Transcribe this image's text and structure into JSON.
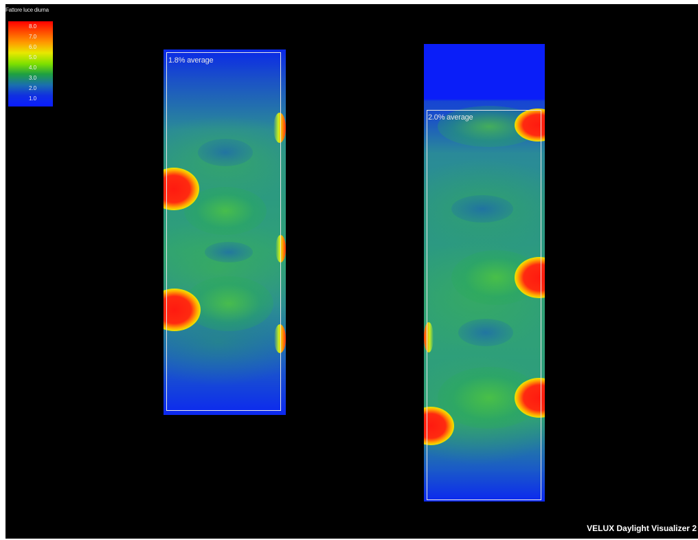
{
  "legend": {
    "title": "Fattore luce diurna",
    "ticks": [
      "8.0",
      "7.0",
      "6.0",
      "5.0",
      "4.0",
      "3.0",
      "2.0",
      "1.0"
    ]
  },
  "rooms": [
    {
      "average_label": "1.8% average"
    },
    {
      "average_label": "2.0% average"
    }
  ],
  "brand": "VELUX Daylight Visualizer 2",
  "colors": {
    "background": "#000000",
    "max": "#ff0000",
    "mid": "#7ee000",
    "min": "#0a1cff"
  }
}
